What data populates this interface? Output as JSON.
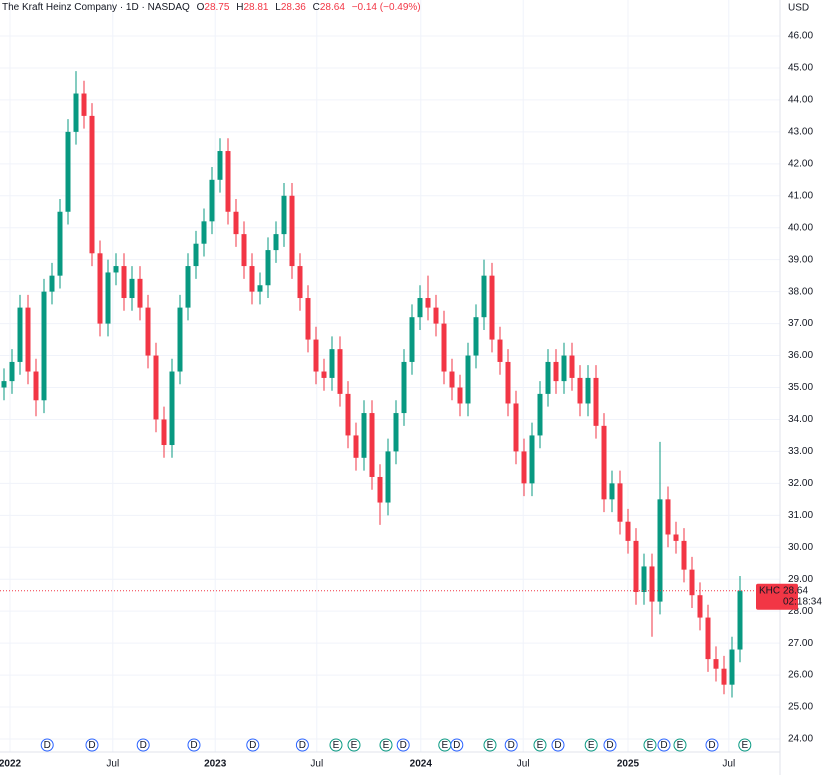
{
  "header": {
    "name": "The Kraft Heinz Company · 1D · NASDAQ",
    "o_label": "O",
    "o": "28.75",
    "h_label": "H",
    "h": "28.81",
    "l_label": "L",
    "l": "28.36",
    "c_label": "C",
    "c": "28.64",
    "change": "−0.14 (−0.49%)"
  },
  "chart_data": {
    "type": "candlestick",
    "currency": "USD",
    "up_color": "#089981",
    "down_color": "#f23645",
    "open": [
      35.0,
      35.2,
      35.8,
      37.5,
      35.5,
      34.6,
      38,
      38.5,
      40.5,
      43,
      44.2,
      43.5,
      39.2,
      37,
      38.6,
      38.8,
      37.8,
      38.4,
      37.5,
      36,
      34,
      33.2,
      35.5,
      37.5,
      38.8,
      39.5,
      40.2,
      41.5,
      42.4,
      40.5,
      39.8,
      38.8,
      38,
      38.2,
      39.3,
      39.8,
      41,
      38.8,
      37.8,
      36.5,
      35.5,
      35.3,
      36.2,
      34.8,
      33.5,
      32.8,
      34.2,
      32.2,
      31.4,
      33,
      34.2,
      35.8,
      37.2,
      37.8,
      37.5,
      37,
      35.5,
      35,
      34.5,
      36,
      37.2,
      38.5,
      36.5,
      35.8,
      34.5,
      33,
      32,
      33.5,
      34.8,
      35.8,
      35.2,
      36,
      35.3,
      34.5,
      35.3,
      33.8,
      31.5,
      32,
      30.8,
      30.2,
      28.6,
      29.4,
      28.3,
      31.5,
      30.4,
      30.2,
      29.3,
      28.5,
      27.8,
      26.5,
      26.2,
      25.7,
      26.8
    ],
    "high": [
      35.6,
      36.2,
      37.9,
      37.9,
      35.9,
      38.4,
      38.9,
      40.9,
      43.4,
      44.9,
      44.6,
      43.9,
      39.6,
      39,
      39.2,
      39.2,
      38.8,
      38.8,
      37.9,
      36.4,
      34.4,
      35.9,
      37.9,
      39.2,
      39.9,
      40.6,
      41.9,
      42.8,
      42.8,
      40.9,
      40.2,
      39.2,
      38.6,
      39.7,
      40.2,
      41.4,
      41.4,
      39.2,
      38.2,
      36.9,
      35.9,
      36.6,
      36.6,
      35.2,
      33.9,
      34.6,
      34.6,
      32.6,
      33.4,
      34.6,
      36.2,
      37.6,
      38.2,
      38.5,
      37.9,
      37.4,
      35.9,
      35.4,
      36.4,
      37.6,
      39,
      38.9,
      36.9,
      36.2,
      34.9,
      33.4,
      33.9,
      35.2,
      36.2,
      36.2,
      36.4,
      36.4,
      35.7,
      35.7,
      35.7,
      34.2,
      32.4,
      32.4,
      31.2,
      30.6,
      29.8,
      29.8,
      33.3,
      31.9,
      30.8,
      30.6,
      29.7,
      28.9,
      28.2,
      26.9,
      26.6,
      27.2,
      29.1
    ],
    "low": [
      34.6,
      34.8,
      35.4,
      35.1,
      34.1,
      34.2,
      37.6,
      38.1,
      40.1,
      42.6,
      43.1,
      38.8,
      36.6,
      36.6,
      38.2,
      37.4,
      37.4,
      37.1,
      35.6,
      33.6,
      32.8,
      32.8,
      35.1,
      37.1,
      38.4,
      39.1,
      39.8,
      41.1,
      40.1,
      39.4,
      38.4,
      37.6,
      37.6,
      37.8,
      38.9,
      39.4,
      38.4,
      37.4,
      36.1,
      35.1,
      34.9,
      34.9,
      34.4,
      33.1,
      32.4,
      32.4,
      31.8,
      30.7,
      31,
      32.6,
      33.8,
      35.4,
      36.8,
      37.1,
      36.6,
      35.1,
      34.6,
      34.1,
      34.1,
      35.6,
      36.8,
      36.1,
      35.4,
      34.1,
      32.6,
      31.6,
      31.6,
      33.1,
      34.4,
      34.8,
      34.8,
      34.9,
      34.1,
      34.1,
      33.4,
      31.1,
      31.1,
      30.4,
      29.8,
      28.2,
      28.2,
      27.2,
      27.9,
      30,
      29.8,
      28.9,
      28.1,
      27.4,
      26.1,
      25.8,
      25.4,
      25.3,
      26.4
    ],
    "close": [
      35.2,
      35.8,
      37.5,
      35.5,
      34.6,
      38,
      38.5,
      40.5,
      43,
      44.2,
      43.5,
      39.2,
      37,
      38.6,
      38.8,
      37.8,
      38.4,
      37.5,
      36,
      34,
      33.2,
      35.5,
      37.5,
      38.8,
      39.5,
      40.2,
      41.5,
      42.4,
      40.5,
      39.8,
      38.8,
      38,
      38.2,
      39.3,
      39.8,
      41,
      38.8,
      37.8,
      36.5,
      35.5,
      35.3,
      36.2,
      34.8,
      33.5,
      32.8,
      34.2,
      32.2,
      31.4,
      33,
      34.2,
      35.8,
      37.2,
      37.8,
      37.5,
      37,
      35.5,
      35,
      34.5,
      36,
      37.2,
      38.5,
      36.5,
      35.8,
      34.5,
      33,
      32,
      33.5,
      34.8,
      35.8,
      35.2,
      36,
      35.3,
      34.5,
      35.3,
      33.8,
      31.5,
      32,
      30.8,
      30.2,
      28.6,
      29.4,
      28.3,
      31.5,
      30.4,
      30.2,
      29.3,
      28.5,
      27.8,
      26.5,
      26.2,
      25.7,
      26.8,
      28.64
    ],
    "xlim": [
      -0.5,
      97
    ],
    "xticks": [
      {
        "value": 0.75,
        "label": "2022"
      },
      {
        "value": 13.6,
        "label": "Jul"
      },
      {
        "value": 26.4,
        "label": "2023"
      },
      {
        "value": 39.1,
        "label": "Jul"
      },
      {
        "value": 52.1,
        "label": "2024"
      },
      {
        "value": 64.9,
        "label": "Jul"
      },
      {
        "value": 78,
        "label": "2025"
      },
      {
        "value": 90.6,
        "label": "Jul"
      }
    ],
    "ylim": [
      24,
      46
    ],
    "yticks": [
      {
        "value": 24,
        "label": "24.00"
      },
      {
        "value": 25,
        "label": "25.00"
      },
      {
        "value": 26,
        "label": "26.00"
      },
      {
        "value": 27,
        "label": "27.00"
      },
      {
        "value": 28,
        "label": "28.00"
      },
      {
        "value": 29,
        "label": "29.00"
      },
      {
        "value": 30,
        "label": "30.00"
      },
      {
        "value": 31,
        "label": "31.00"
      },
      {
        "value": 32,
        "label": "32.00"
      },
      {
        "value": 33,
        "label": "33.00"
      },
      {
        "value": 34,
        "label": "34.00"
      },
      {
        "value": 35,
        "label": "35.00"
      },
      {
        "value": 36,
        "label": "36.00"
      },
      {
        "value": 37,
        "label": "37.00"
      },
      {
        "value": 38,
        "label": "38.00"
      },
      {
        "value": 39,
        "label": "39.00"
      },
      {
        "value": 40,
        "label": "40.00"
      },
      {
        "value": 41,
        "label": "41.00"
      },
      {
        "value": 42,
        "label": "42.00"
      },
      {
        "value": 43,
        "label": "43.00"
      },
      {
        "value": 44,
        "label": "44.00"
      },
      {
        "value": 45,
        "label": "45.00"
      },
      {
        "value": 46,
        "label": "46.00"
      }
    ],
    "grid": true,
    "last": {
      "symbol": "KHC",
      "value": 28.64,
      "label": "28.64",
      "countdown": "02:18:34",
      "color": "#f23645"
    },
    "events": [
      {
        "label": "D",
        "x": 5.4
      },
      {
        "label": "D",
        "x": 11
      },
      {
        "label": "D",
        "x": 17.4
      },
      {
        "label": "D",
        "x": 23.75
      },
      {
        "label": "D",
        "x": 31.1
      },
      {
        "label": "D",
        "x": 37.3
      },
      {
        "label": "E",
        "x": 41.5
      },
      {
        "label": "E",
        "x": 43.75
      },
      {
        "label": "E",
        "x": 47.75
      },
      {
        "label": "D",
        "x": 49.9
      },
      {
        "label": "E",
        "x": 55.1
      },
      {
        "label": "D",
        "x": 56.6
      },
      {
        "label": "E",
        "x": 60.75
      },
      {
        "label": "D",
        "x": 63.4
      },
      {
        "label": "E",
        "x": 67
      },
      {
        "label": "D",
        "x": 69.25
      },
      {
        "label": "E",
        "x": 73.4
      },
      {
        "label": "D",
        "x": 75.75
      },
      {
        "label": "E",
        "x": 80.75
      },
      {
        "label": "D",
        "x": 82.5
      },
      {
        "label": "E",
        "x": 84.5
      },
      {
        "label": "D",
        "x": 88.5
      },
      {
        "label": "E",
        "x": 92.6
      }
    ]
  }
}
